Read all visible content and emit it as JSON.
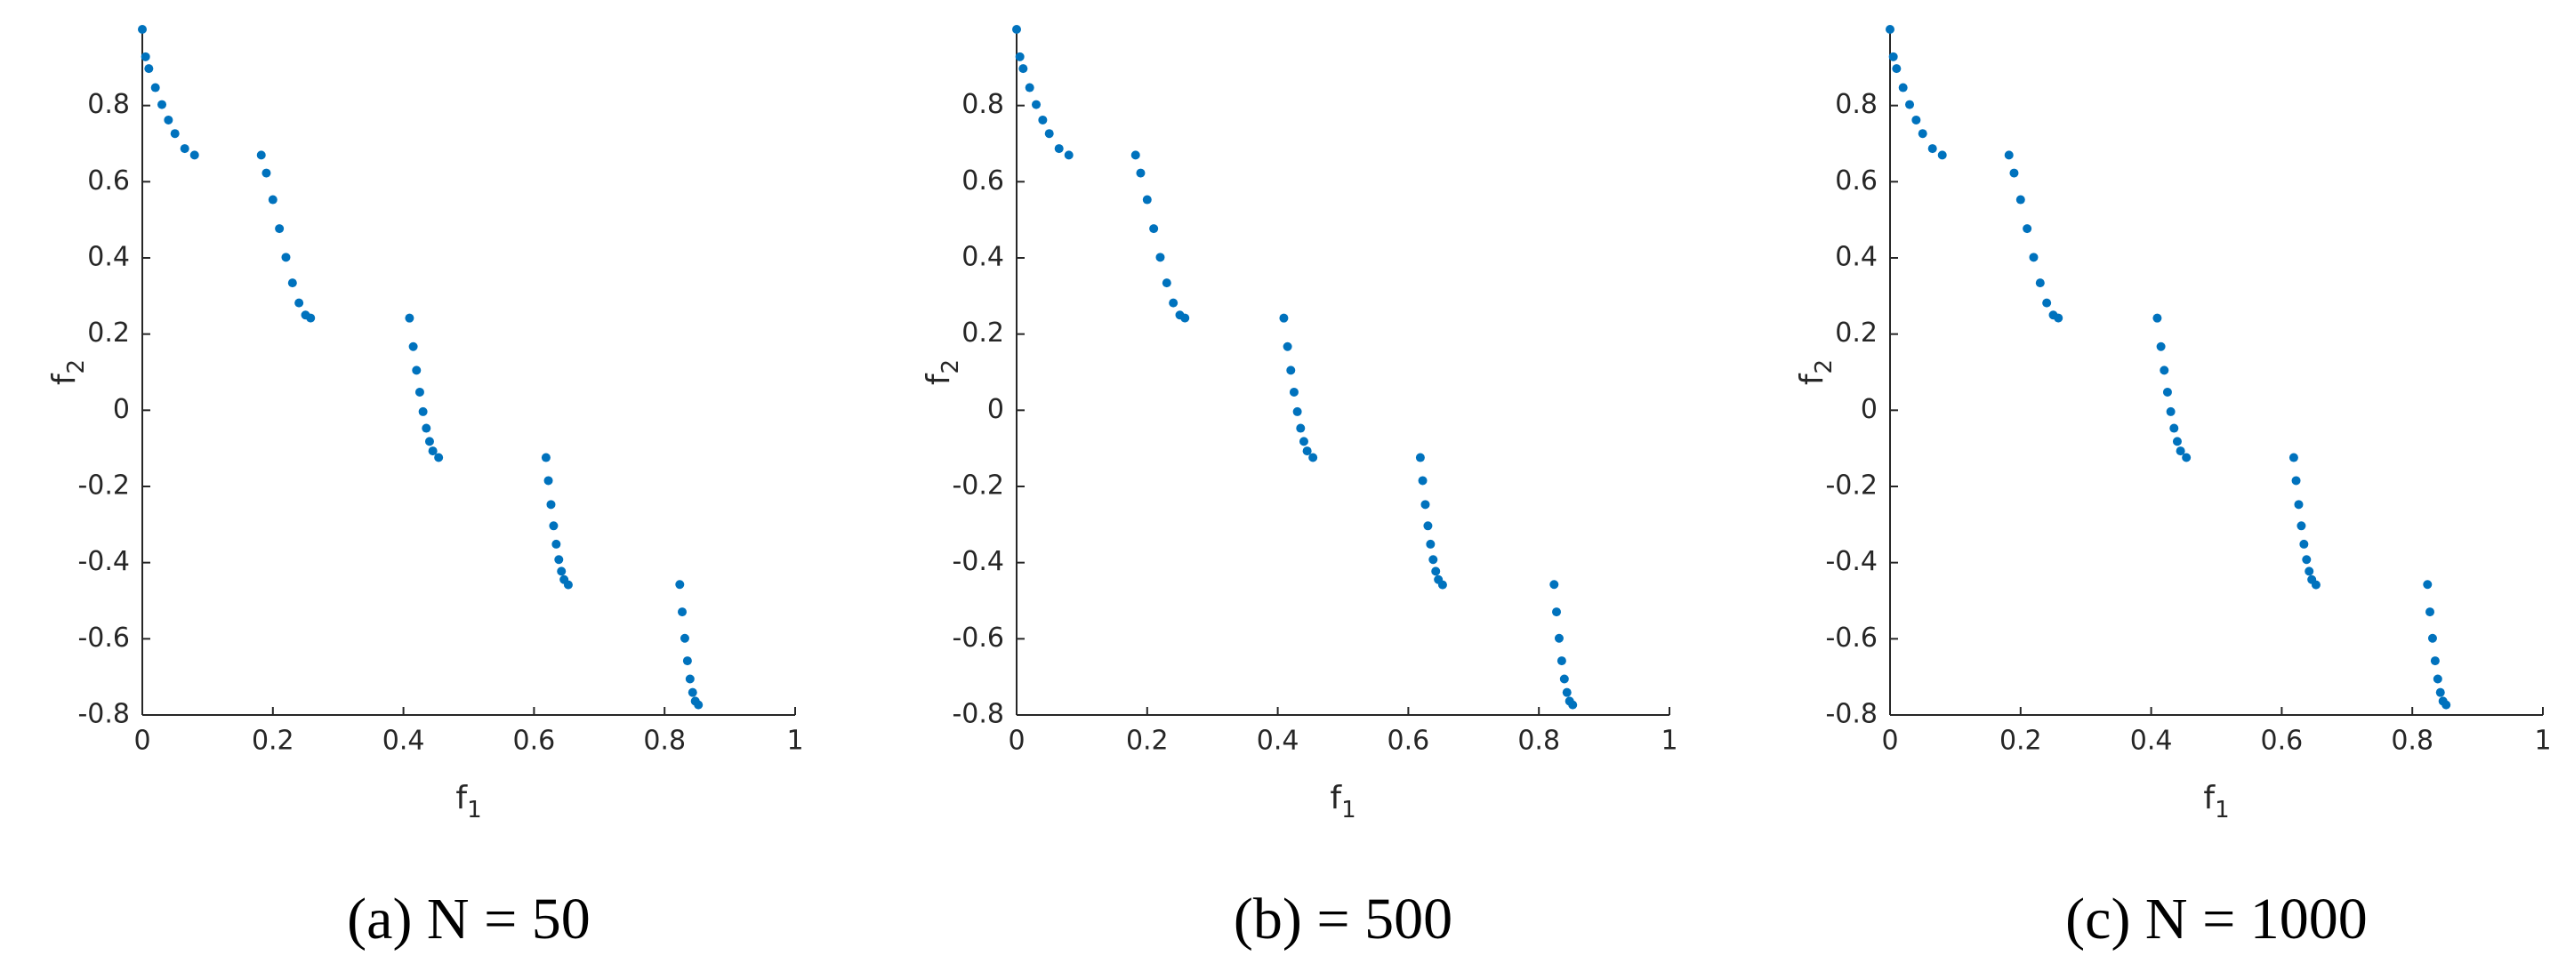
{
  "chart_data": [
    {
      "type": "scatter",
      "caption": "(a) N = 50",
      "xlabel": "f",
      "xlabel_subscript": "1",
      "ylabel": "f",
      "ylabel_subscript": "2",
      "color": "#0072bd",
      "xlim": [
        0,
        1
      ],
      "ylim": [
        -0.8,
        1
      ],
      "xticks": [
        0,
        0.2,
        0.4,
        0.6,
        0.8,
        1
      ],
      "yticks": [
        -0.8,
        -0.6,
        -0.4,
        -0.2,
        0,
        0.2,
        0.4,
        0.6,
        0.8
      ],
      "x": [
        0,
        0.005,
        0.01,
        0.02,
        0.03,
        0.04,
        0.05,
        0.065,
        0.08,
        0.1822,
        0.19,
        0.2,
        0.21,
        0.22,
        0.23,
        0.24,
        0.25,
        0.2578,
        0.4093,
        0.415,
        0.42,
        0.425,
        0.43,
        0.435,
        0.44,
        0.445,
        0.4539,
        0.6184,
        0.622,
        0.626,
        0.63,
        0.634,
        0.638,
        0.642,
        0.646,
        0.6525,
        0.8233,
        0.827,
        0.831,
        0.835,
        0.839,
        0.843,
        0.847,
        0.8518
      ],
      "y": [
        1,
        0.928,
        0.897,
        0.847,
        0.8025,
        0.762,
        0.7264,
        0.687,
        0.67,
        0.67,
        0.6228,
        0.5528,
        0.4768,
        0.4016,
        0.3344,
        0.2818,
        0.25,
        0.2422,
        0.242,
        0.1671,
        0.1049,
        0.0476,
        -0.0037,
        -0.0472,
        -0.0818,
        -0.1068,
        -0.1241,
        -0.1242,
        -0.1847,
        -0.2475,
        -0.3034,
        -0.3516,
        -0.392,
        -0.4227,
        -0.4445,
        -0.4583,
        -0.4574,
        -0.5294,
        -0.5986,
        -0.6578,
        -0.7055,
        -0.7409,
        -0.7636,
        -0.7734
      ]
    },
    {
      "type": "scatter",
      "caption": "(b) = 500",
      "xlabel": "f",
      "xlabel_subscript": "1",
      "ylabel": "f",
      "ylabel_subscript": "2",
      "color": "#0072bd",
      "xlim": [
        0,
        1
      ],
      "ylim": [
        -0.8,
        1
      ],
      "xticks": [
        0,
        0.2,
        0.4,
        0.6,
        0.8,
        1
      ],
      "yticks": [
        -0.8,
        -0.6,
        -0.4,
        -0.2,
        0,
        0.2,
        0.4,
        0.6,
        0.8
      ],
      "x": [
        0,
        0.005,
        0.01,
        0.02,
        0.03,
        0.04,
        0.05,
        0.065,
        0.08,
        0.1822,
        0.19,
        0.2,
        0.21,
        0.22,
        0.23,
        0.24,
        0.25,
        0.2578,
        0.4093,
        0.415,
        0.42,
        0.425,
        0.43,
        0.435,
        0.44,
        0.445,
        0.4539,
        0.6184,
        0.622,
        0.626,
        0.63,
        0.634,
        0.638,
        0.642,
        0.646,
        0.6525,
        0.8233,
        0.827,
        0.831,
        0.835,
        0.839,
        0.843,
        0.847,
        0.8518
      ],
      "y": [
        1,
        0.928,
        0.897,
        0.847,
        0.8025,
        0.762,
        0.7264,
        0.687,
        0.67,
        0.67,
        0.6228,
        0.5528,
        0.4768,
        0.4016,
        0.3344,
        0.2818,
        0.25,
        0.2422,
        0.242,
        0.1671,
        0.1049,
        0.0476,
        -0.0037,
        -0.0472,
        -0.0818,
        -0.1068,
        -0.1241,
        -0.1242,
        -0.1847,
        -0.2475,
        -0.3034,
        -0.3516,
        -0.392,
        -0.4227,
        -0.4445,
        -0.4583,
        -0.4574,
        -0.5294,
        -0.5986,
        -0.6578,
        -0.7055,
        -0.7409,
        -0.7636,
        -0.7734
      ]
    },
    {
      "type": "scatter",
      "caption": "(c) N = 1000",
      "xlabel": "f",
      "xlabel_subscript": "1",
      "ylabel": "f",
      "ylabel_subscript": "2",
      "color": "#0072bd",
      "xlim": [
        0,
        1
      ],
      "ylim": [
        -0.8,
        1
      ],
      "xticks": [
        0,
        0.2,
        0.4,
        0.6,
        0.8,
        1
      ],
      "yticks": [
        -0.8,
        -0.6,
        -0.4,
        -0.2,
        0,
        0.2,
        0.4,
        0.6,
        0.8
      ],
      "x": [
        0,
        0.005,
        0.01,
        0.02,
        0.03,
        0.04,
        0.05,
        0.065,
        0.08,
        0.1822,
        0.19,
        0.2,
        0.21,
        0.22,
        0.23,
        0.24,
        0.25,
        0.2578,
        0.4093,
        0.415,
        0.42,
        0.425,
        0.43,
        0.435,
        0.44,
        0.445,
        0.4539,
        0.6184,
        0.622,
        0.626,
        0.63,
        0.634,
        0.638,
        0.642,
        0.646,
        0.6525,
        0.8233,
        0.827,
        0.831,
        0.835,
        0.839,
        0.843,
        0.847,
        0.8518
      ],
      "y": [
        1,
        0.928,
        0.897,
        0.847,
        0.8025,
        0.762,
        0.7264,
        0.687,
        0.67,
        0.67,
        0.6228,
        0.5528,
        0.4768,
        0.4016,
        0.3344,
        0.2818,
        0.25,
        0.2422,
        0.242,
        0.1671,
        0.1049,
        0.0476,
        -0.0037,
        -0.0472,
        -0.0818,
        -0.1068,
        -0.1241,
        -0.1242,
        -0.1847,
        -0.2475,
        -0.3034,
        -0.3516,
        -0.392,
        -0.4227,
        -0.4445,
        -0.4583,
        -0.4574,
        -0.5294,
        -0.5986,
        -0.6578,
        -0.7055,
        -0.7409,
        -0.7636,
        -0.7734
      ]
    }
  ]
}
